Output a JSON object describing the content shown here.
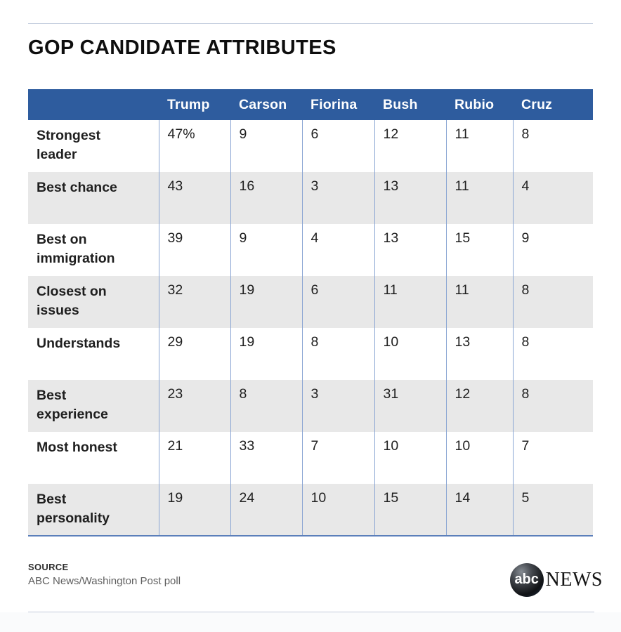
{
  "page": {
    "title": "GOP CANDIDATE ATTRIBUTES"
  },
  "table": {
    "columns": [
      "Trump",
      "Carson",
      "Fiorina",
      "Bush",
      "Rubio",
      "Cruz"
    ],
    "rows": [
      {
        "label": "Strongest\nleader",
        "values": [
          "47%",
          "9",
          "6",
          "12",
          "11",
          "8"
        ]
      },
      {
        "label": "Best chance",
        "values": [
          "43",
          "16",
          "3",
          "13",
          "11",
          "4"
        ]
      },
      {
        "label": "Best on\nimmigration",
        "values": [
          "39",
          "9",
          "4",
          "13",
          "15",
          "9"
        ]
      },
      {
        "label": "Closest on\nissues",
        "values": [
          "32",
          "19",
          "6",
          "11",
          "11",
          "8"
        ]
      },
      {
        "label": "Understands",
        "values": [
          "29",
          "19",
          "8",
          "10",
          "13",
          "8"
        ]
      },
      {
        "label": "Best\nexperience",
        "values": [
          "23",
          "8",
          "3",
          "31",
          "12",
          "8"
        ]
      },
      {
        "label": "Most honest",
        "values": [
          "21",
          "33",
          "7",
          "10",
          "10",
          "7"
        ]
      },
      {
        "label": "Best\npersonality",
        "values": [
          "19",
          "24",
          "10",
          "15",
          "14",
          "5"
        ]
      }
    ]
  },
  "footer": {
    "source_label": "SOURCE",
    "source_text": "ABC News/Washington Post poll",
    "logo_abc": "abc",
    "logo_news": "NEWS"
  },
  "colors": {
    "header_bg": "#2e5c9e",
    "alt_row_bg": "#e8e8e8",
    "divider": "#8aa5d3",
    "table_bottom_border": "#5b7fba",
    "rule": "#c7d0e0"
  },
  "chart_data": {
    "type": "table",
    "title": "GOP CANDIDATE ATTRIBUTES",
    "columns": [
      "Trump",
      "Carson",
      "Fiorina",
      "Bush",
      "Rubio",
      "Cruz"
    ],
    "rows": [
      "Strongest leader",
      "Best chance",
      "Best on immigration",
      "Closest on issues",
      "Understands",
      "Best experience",
      "Most honest",
      "Best personality"
    ],
    "values": [
      [
        47,
        9,
        6,
        12,
        11,
        8
      ],
      [
        43,
        16,
        3,
        13,
        11,
        4
      ],
      [
        39,
        9,
        4,
        13,
        15,
        9
      ],
      [
        32,
        19,
        6,
        11,
        11,
        8
      ],
      [
        29,
        19,
        8,
        10,
        13,
        8
      ],
      [
        23,
        8,
        3,
        31,
        12,
        8
      ],
      [
        21,
        33,
        7,
        10,
        10,
        7
      ],
      [
        19,
        24,
        10,
        15,
        14,
        5
      ]
    ],
    "unit": "percent",
    "source": "ABC News/Washington Post poll"
  }
}
